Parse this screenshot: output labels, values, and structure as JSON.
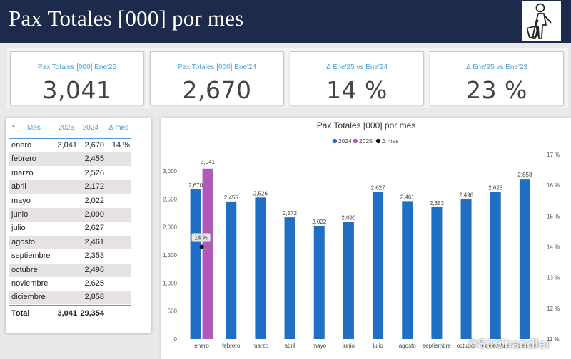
{
  "header": {
    "title": "Pax Totales [000] por mes",
    "logo_icon": "traveler-with-suitcase-icon"
  },
  "kpis": [
    {
      "label": "Pax Totales [000] Ene'25",
      "value": "3,041"
    },
    {
      "label": "Pax Totales [000] Ene'24",
      "value": "2,670"
    },
    {
      "label": "Δ Ene'25 vs Ene'24",
      "value": "14 %"
    },
    {
      "label": "Δ Ene'25 vs Ene'23",
      "value": "23 %"
    }
  ],
  "table": {
    "headers": {
      "mes": "Mes",
      "y2025": "2025",
      "y2024": "2024",
      "delta": "Δ mes"
    },
    "sort_icon": "▲",
    "rows": [
      {
        "mes": "enero",
        "y2025": "3,041",
        "y2024": "2,670",
        "delta": "14 %"
      },
      {
        "mes": "febrero",
        "y2025": "",
        "y2024": "2,455",
        "delta": ""
      },
      {
        "mes": "marzo",
        "y2025": "",
        "y2024": "2,526",
        "delta": ""
      },
      {
        "mes": "abril",
        "y2025": "",
        "y2024": "2,172",
        "delta": ""
      },
      {
        "mes": "mayo",
        "y2025": "",
        "y2024": "2,022",
        "delta": ""
      },
      {
        "mes": "junio",
        "y2025": "",
        "y2024": "2,090",
        "delta": ""
      },
      {
        "mes": "julio",
        "y2025": "",
        "y2024": "2,627",
        "delta": ""
      },
      {
        "mes": "agosto",
        "y2025": "",
        "y2024": "2,461",
        "delta": ""
      },
      {
        "mes": "septiembre",
        "y2025": "",
        "y2024": "2,353",
        "delta": ""
      },
      {
        "mes": "octubre",
        "y2025": "",
        "y2024": "2,496",
        "delta": ""
      },
      {
        "mes": "noviembre",
        "y2025": "",
        "y2024": "2,625",
        "delta": ""
      },
      {
        "mes": "diciembre",
        "y2025": "",
        "y2024": "2,858",
        "delta": ""
      }
    ],
    "total": {
      "mes": "Total",
      "y2025": "3,041",
      "y2024": "29,354"
    }
  },
  "chart_data": {
    "type": "bar",
    "title": "Pax Totales [000] por mes",
    "categories": [
      "enero",
      "febrero",
      "marzo",
      "abril",
      "mayo",
      "junio",
      "julio",
      "agosto",
      "septiembre",
      "octubre",
      "noviembre",
      "diciembre"
    ],
    "series": [
      {
        "name": "2024",
        "color": "#1f6fc5",
        "values": [
          2670,
          2455,
          2526,
          2172,
          2022,
          2090,
          2627,
          2461,
          2353,
          2496,
          2625,
          2858
        ]
      },
      {
        "name": "2025",
        "color": "#b05ab8",
        "values": [
          3041,
          null,
          null,
          null,
          null,
          null,
          null,
          null,
          null,
          null,
          null,
          null
        ]
      },
      {
        "name": "Δ mes",
        "color": "#111111",
        "type": "scatter",
        "axis": "right",
        "values": [
          14,
          null,
          null,
          null,
          null,
          null,
          null,
          null,
          null,
          null,
          null,
          null
        ]
      }
    ],
    "ylim": [
      0,
      3000
    ],
    "yticks": [
      "0",
      "500",
      "1,000",
      "1,500",
      "2,000",
      "2,500",
      "3,000"
    ],
    "y2lim": [
      11,
      17
    ],
    "y2ticks": [
      "11 %",
      "12 %",
      "13 %",
      "14 %",
      "15 %",
      "16 %",
      "17 %"
    ],
    "data_labels": {
      "2024": [
        "2,670",
        "2,455",
        "2,526",
        "2,172",
        "2,022",
        "2,090",
        "2,627",
        "2,461",
        "2,353",
        "2,496",
        "2,625",
        "2,858"
      ],
      "2025": [
        "3,041"
      ],
      "delta": [
        "14 %"
      ]
    },
    "legend": "top-center",
    "grid": false
  },
  "watermark": "©SirChandler"
}
